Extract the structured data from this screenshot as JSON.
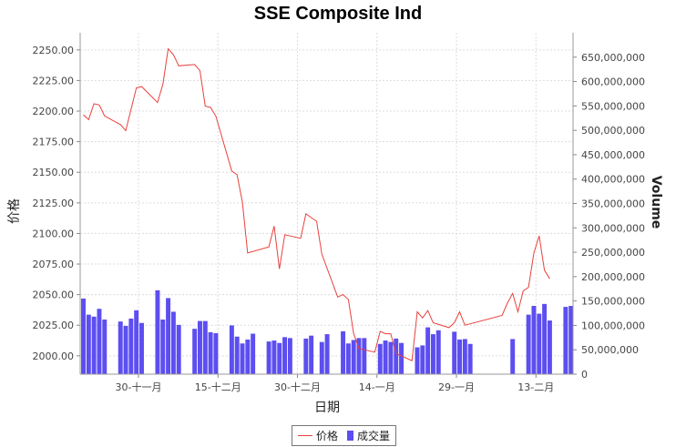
{
  "chart_data": {
    "type": "bar+line",
    "title": "SSE Composite Ind",
    "xlabel": "日期",
    "ylabel_left": "价格",
    "ylabel_right": "Volume",
    "x_ticks": [
      "30-十一月",
      "15-十二月",
      "30-十二月",
      "14-一月",
      "29-一月",
      "13-二月"
    ],
    "y_left_ticks": [
      2000,
      2025,
      2050,
      2075,
      2100,
      2125,
      2150,
      2175,
      2200,
      2225,
      2250
    ],
    "y_left_range": [
      1985,
      2264
    ],
    "y_right_ticks": [
      0,
      50000000,
      100000000,
      150000000,
      200000000,
      250000000,
      300000000,
      350000000,
      400000000,
      450000000,
      500000000,
      550000000,
      600000000,
      650000000
    ],
    "y_right_range": [
      0,
      700000000
    ],
    "x_range_days": [
      0,
      83
    ],
    "grid": true,
    "legend": "bottom-center",
    "colors": {
      "price": "#e8413d",
      "volume": "#5c4ef0"
    },
    "series": [
      {
        "name": "价格",
        "kind": "line",
        "data": [
          [
            0,
            2197
          ],
          [
            1,
            2193
          ],
          [
            2,
            2206
          ],
          [
            3,
            2205
          ],
          [
            4,
            2196
          ],
          [
            7,
            2189
          ],
          [
            8,
            2184
          ],
          [
            10,
            2219
          ],
          [
            11,
            2220
          ],
          [
            14,
            2207
          ],
          [
            15,
            2222
          ],
          [
            16,
            2251
          ],
          [
            17,
            2246
          ],
          [
            18,
            2237
          ],
          [
            21,
            2238
          ],
          [
            22,
            2233
          ],
          [
            23,
            2204
          ],
          [
            24,
            2203
          ],
          [
            25,
            2196
          ],
          [
            28,
            2151
          ],
          [
            29,
            2148
          ],
          [
            30,
            2126
          ],
          [
            31,
            2084
          ],
          [
            35,
            2089
          ],
          [
            36,
            2106
          ],
          [
            37,
            2071
          ],
          [
            38,
            2099
          ],
          [
            41,
            2096
          ],
          [
            42,
            2116
          ],
          [
            43,
            2113
          ],
          [
            44,
            2110
          ],
          [
            45,
            2083
          ],
          [
            48,
            2048
          ],
          [
            49,
            2050
          ],
          [
            50,
            2046
          ],
          [
            51,
            2018
          ],
          [
            52,
            2006
          ],
          [
            55,
            2003
          ],
          [
            56,
            2020
          ],
          [
            57,
            2018
          ],
          [
            58,
            2018
          ],
          [
            59,
            2002
          ],
          [
            62,
            1996
          ],
          [
            63,
            2036
          ],
          [
            64,
            2031
          ],
          [
            65,
            2037
          ],
          [
            66,
            2027
          ],
          [
            69,
            2023
          ],
          [
            70,
            2027
          ],
          [
            71,
            2036
          ],
          [
            72,
            2025
          ],
          [
            79,
            2033
          ],
          [
            80,
            2043
          ],
          [
            81,
            2051
          ],
          [
            82,
            2036
          ],
          [
            83,
            2053
          ],
          [
            84,
            2056
          ],
          [
            85,
            2084
          ],
          [
            86,
            2098
          ],
          [
            87,
            2070
          ],
          [
            88,
            2063
          ]
        ]
      },
      {
        "name": "成交量",
        "kind": "bar",
        "data": [
          [
            0,
            155000000
          ],
          [
            1,
            122000000
          ],
          [
            2,
            118000000
          ],
          [
            3,
            134000000
          ],
          [
            4,
            112000000
          ],
          [
            7,
            108000000
          ],
          [
            8,
            99000000
          ],
          [
            9,
            114000000
          ],
          [
            10,
            131000000
          ],
          [
            11,
            105000000
          ],
          [
            14,
            172000000
          ],
          [
            15,
            112000000
          ],
          [
            16,
            156000000
          ],
          [
            17,
            128000000
          ],
          [
            18,
            101000000
          ],
          [
            21,
            93000000
          ],
          [
            22,
            109000000
          ],
          [
            23,
            109000000
          ],
          [
            24,
            86000000
          ],
          [
            25,
            84000000
          ],
          [
            28,
            100000000
          ],
          [
            29,
            77000000
          ],
          [
            30,
            63000000
          ],
          [
            31,
            71000000
          ],
          [
            32,
            83000000
          ],
          [
            35,
            67000000
          ],
          [
            36,
            69000000
          ],
          [
            37,
            64000000
          ],
          [
            38,
            76000000
          ],
          [
            39,
            74000000
          ],
          [
            42,
            73000000
          ],
          [
            43,
            79000000
          ],
          [
            45,
            66000000
          ],
          [
            46,
            82000000
          ],
          [
            49,
            88000000
          ],
          [
            50,
            63000000
          ],
          [
            51,
            70000000
          ],
          [
            52,
            74000000
          ],
          [
            53,
            74000000
          ],
          [
            56,
            62000000
          ],
          [
            57,
            69000000
          ],
          [
            58,
            66000000
          ],
          [
            59,
            73000000
          ],
          [
            60,
            64000000
          ],
          [
            63,
            55000000
          ],
          [
            64,
            59000000
          ],
          [
            65,
            96000000
          ],
          [
            66,
            82000000
          ],
          [
            67,
            90000000
          ],
          [
            70,
            87000000
          ],
          [
            71,
            71000000
          ],
          [
            72,
            72000000
          ],
          [
            73,
            62000000
          ],
          [
            81,
            72000000
          ],
          [
            84,
            122000000
          ],
          [
            85,
            140000000
          ],
          [
            86,
            124000000
          ],
          [
            87,
            144000000
          ],
          [
            88,
            110000000
          ],
          [
            91,
            138000000
          ],
          [
            92,
            140000000
          ]
        ]
      }
    ]
  }
}
